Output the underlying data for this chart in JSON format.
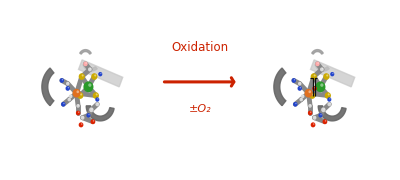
{
  "arrow_text_line1": "Oxidation",
  "arrow_text_line2": "±O₂",
  "arrow_color": "#cc2200",
  "text_fontsize": 8.5,
  "background_color": "#ffffff",
  "fig_width": 4.0,
  "fig_height": 1.8,
  "dpi": 100,
  "panel_bg": "#f5f5f5",
  "ribbon_color": "#999999",
  "ribbon_dark": "#666666",
  "ni_color": "#2a9a2a",
  "fe_color": "#e07020",
  "s_color": "#ccaa00",
  "n_color": "#2244cc",
  "c_color": "#d8d8d8",
  "o_color": "#dd2200",
  "pink_color": "#ffaaaa",
  "bracket_color": "#111111"
}
